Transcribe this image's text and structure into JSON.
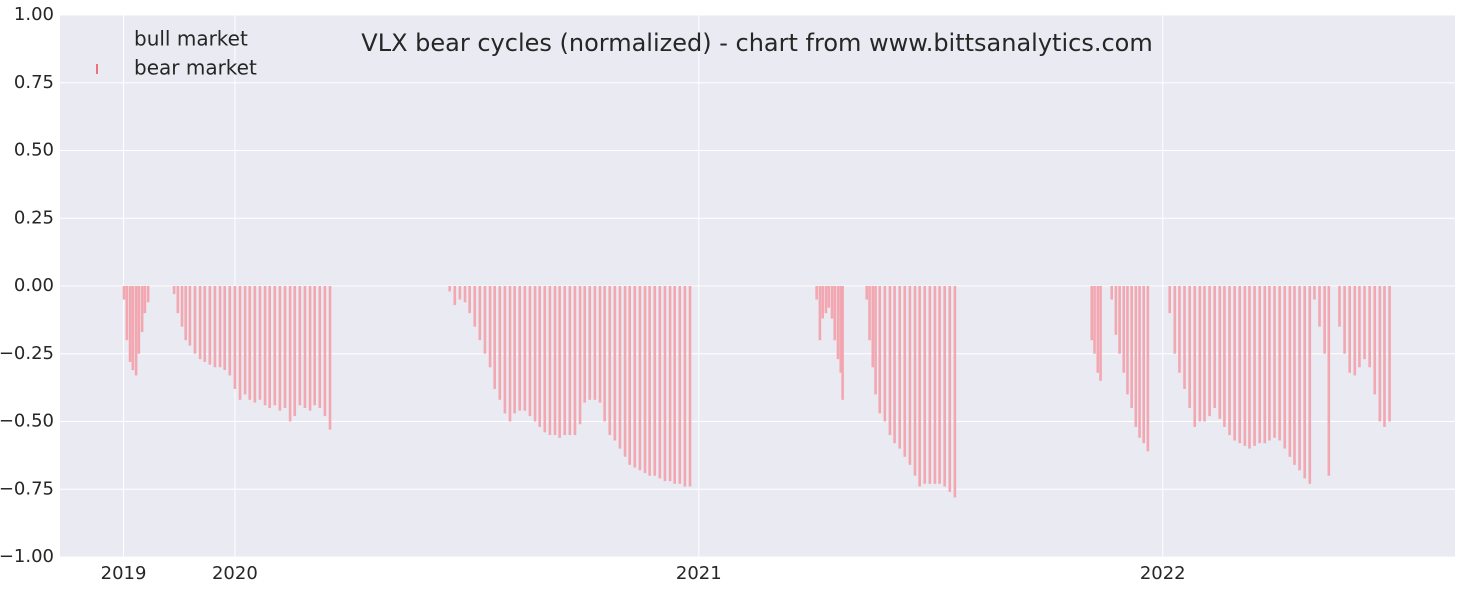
{
  "chart_data": {
    "type": "bar",
    "title": "VLX bear cycles (normalized)  - chart from www.bittsanalytics.com",
    "xlim": [
      2019.623,
      2022.63
    ],
    "xticks": [
      {
        "value": 2019.76,
        "label": "2019"
      },
      2020,
      2021,
      2022
    ],
    "ylim": [
      -1,
      1
    ],
    "yticks": [
      {
        "value": -1,
        "label": "−1.00"
      },
      {
        "value": -0.75,
        "label": "−0.75"
      },
      {
        "value": -0.5,
        "label": "−0.50"
      },
      {
        "value": -0.25,
        "label": "−0.25"
      },
      {
        "value": 0,
        "label": "0.00"
      },
      {
        "value": 0.25,
        "label": "0.25"
      },
      {
        "value": 0.5,
        "label": "0.50"
      },
      {
        "value": 0.75,
        "label": "0.75"
      },
      {
        "value": 1,
        "label": "1.00"
      }
    ],
    "grid": true,
    "legend": "upper left",
    "series": [
      {
        "name": "bull market",
        "color": "#ffffff",
        "x": [],
        "values": []
      },
      {
        "name": "bear market",
        "color": "#f2a3ad",
        "x": [
          2019.761,
          2019.767,
          2019.774,
          2019.78,
          2019.787,
          2019.793,
          2019.8,
          2019.806,
          2019.813,
          2019.869,
          2019.877,
          2019.886,
          2019.894,
          2019.903,
          2019.914,
          2019.925,
          2019.935,
          2019.946,
          2019.957,
          2019.968,
          2019.978,
          2019.989,
          2020.0,
          2020.011,
          2020.022,
          2020.032,
          2020.043,
          2020.054,
          2020.065,
          2020.075,
          2020.086,
          2020.097,
          2020.108,
          2020.119,
          2020.129,
          2020.14,
          2020.151,
          2020.162,
          2020.172,
          2020.183,
          2020.194,
          2020.205,
          2020.463,
          2020.474,
          2020.485,
          2020.496,
          2020.506,
          2020.517,
          2020.528,
          2020.539,
          2020.55,
          2020.56,
          2020.571,
          2020.582,
          2020.593,
          2020.603,
          2020.614,
          2020.625,
          2020.636,
          2020.647,
          2020.657,
          2020.668,
          2020.679,
          2020.69,
          2020.7,
          2020.711,
          2020.722,
          2020.733,
          2020.744,
          2020.754,
          2020.765,
          2020.776,
          2020.787,
          2020.797,
          2020.808,
          2020.819,
          2020.83,
          2020.841,
          2020.851,
          2020.862,
          2020.873,
          2020.884,
          2020.894,
          2020.905,
          2020.916,
          2020.927,
          2020.938,
          2020.948,
          2020.959,
          2020.97,
          2020.981,
          2021.254,
          2021.261,
          2021.267,
          2021.274,
          2021.28,
          2021.287,
          2021.293,
          2021.3,
          2021.306,
          2021.31,
          2021.362,
          2021.368,
          2021.375,
          2021.381,
          2021.39,
          2021.401,
          2021.412,
          2021.422,
          2021.433,
          2021.444,
          2021.455,
          2021.466,
          2021.476,
          2021.487,
          2021.498,
          2021.509,
          2021.519,
          2021.53,
          2021.541,
          2021.552,
          2021.847,
          2021.853,
          2021.86,
          2021.866,
          2021.89,
          2021.899,
          2021.907,
          2021.916,
          2021.924,
          2021.933,
          2021.942,
          2021.95,
          2021.959,
          2021.968,
          2022.015,
          2022.026,
          2022.036,
          2022.047,
          2022.058,
          2022.069,
          2022.08,
          2022.09,
          2022.101,
          2022.112,
          2022.123,
          2022.133,
          2022.144,
          2022.155,
          2022.166,
          2022.177,
          2022.187,
          2022.198,
          2022.209,
          2022.22,
          2022.23,
          2022.241,
          2022.252,
          2022.263,
          2022.274,
          2022.284,
          2022.295,
          2022.306,
          2022.317,
          2022.327,
          2022.338,
          2022.349,
          2022.358,
          2022.381,
          2022.392,
          2022.403,
          2022.414,
          2022.424,
          2022.435,
          2022.446,
          2022.457,
          2022.468,
          2022.478,
          2022.489
        ],
        "values": [
          -0.05,
          -0.2,
          -0.28,
          -0.31,
          -0.33,
          -0.25,
          -0.17,
          -0.1,
          -0.06,
          -0.03,
          -0.1,
          -0.15,
          -0.2,
          -0.22,
          -0.25,
          -0.27,
          -0.28,
          -0.29,
          -0.3,
          -0.3,
          -0.31,
          -0.33,
          -0.38,
          -0.42,
          -0.4,
          -0.42,
          -0.43,
          -0.42,
          -0.44,
          -0.45,
          -0.44,
          -0.46,
          -0.45,
          -0.5,
          -0.48,
          -0.44,
          -0.45,
          -0.46,
          -0.44,
          -0.45,
          -0.48,
          -0.53,
          -0.02,
          -0.07,
          -0.05,
          -0.06,
          -0.1,
          -0.15,
          -0.2,
          -0.25,
          -0.3,
          -0.38,
          -0.42,
          -0.47,
          -0.5,
          -0.47,
          -0.46,
          -0.46,
          -0.48,
          -0.5,
          -0.52,
          -0.54,
          -0.55,
          -0.55,
          -0.56,
          -0.55,
          -0.55,
          -0.55,
          -0.51,
          -0.43,
          -0.42,
          -0.42,
          -0.43,
          -0.5,
          -0.55,
          -0.57,
          -0.6,
          -0.63,
          -0.66,
          -0.67,
          -0.68,
          -0.69,
          -0.7,
          -0.7,
          -0.71,
          -0.72,
          -0.72,
          -0.73,
          -0.73,
          -0.74,
          -0.74,
          -0.05,
          -0.2,
          -0.12,
          -0.1,
          -0.08,
          -0.12,
          -0.2,
          -0.27,
          -0.32,
          -0.42,
          -0.05,
          -0.2,
          -0.3,
          -0.4,
          -0.47,
          -0.5,
          -0.55,
          -0.58,
          -0.6,
          -0.63,
          -0.66,
          -0.7,
          -0.74,
          -0.73,
          -0.73,
          -0.73,
          -0.73,
          -0.74,
          -0.76,
          -0.78,
          -0.2,
          -0.25,
          -0.32,
          -0.35,
          -0.05,
          -0.18,
          -0.25,
          -0.32,
          -0.4,
          -0.45,
          -0.52,
          -0.56,
          -0.58,
          -0.61,
          -0.1,
          -0.25,
          -0.32,
          -0.38,
          -0.45,
          -0.52,
          -0.5,
          -0.5,
          -0.48,
          -0.45,
          -0.49,
          -0.52,
          -0.55,
          -0.57,
          -0.58,
          -0.59,
          -0.6,
          -0.59,
          -0.58,
          -0.58,
          -0.57,
          -0.56,
          -0.57,
          -0.6,
          -0.63,
          -0.66,
          -0.68,
          -0.71,
          -0.73,
          -0.05,
          -0.15,
          -0.25,
          -0.7,
          -0.15,
          -0.25,
          -0.32,
          -0.33,
          -0.3,
          -0.27,
          -0.3,
          -0.4,
          -0.5,
          -0.52,
          -0.5
        ]
      }
    ]
  }
}
